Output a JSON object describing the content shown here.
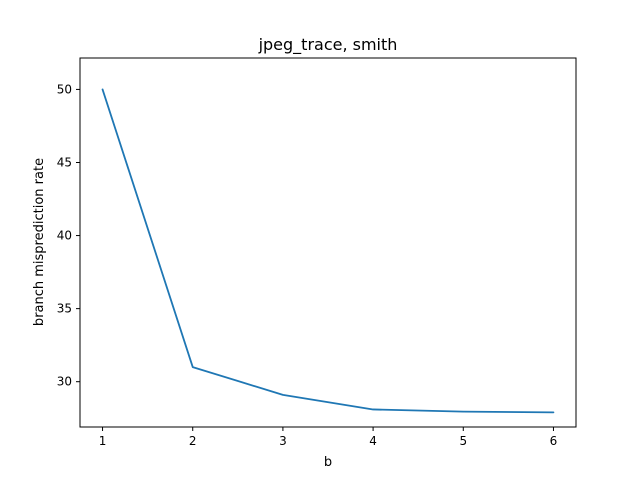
{
  "chart_data": {
    "type": "line",
    "title": "jpeg_trace, smith",
    "xlabel": "b",
    "ylabel": "branch misprediction rate",
    "x": [
      1,
      2,
      3,
      4,
      5,
      6
    ],
    "series": [
      {
        "values": [
          50.0,
          31.0,
          29.1,
          28.1,
          27.95,
          27.9
        ],
        "color": "#1f77b4"
      }
    ],
    "xlim": [
      0.75,
      6.25
    ],
    "ylim": [
      26.9,
      52.15
    ],
    "xticks": [
      1,
      2,
      3,
      4,
      5,
      6
    ],
    "yticks": [
      30,
      35,
      40,
      45,
      50
    ],
    "grid": false
  }
}
